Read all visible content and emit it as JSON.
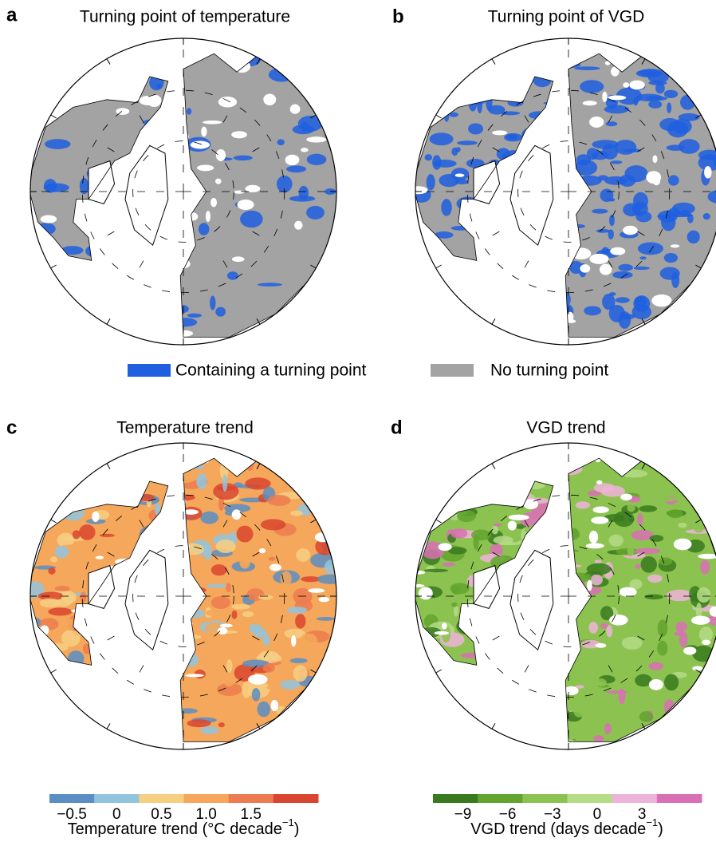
{
  "panels": [
    {
      "letter": "a",
      "title": "Turning point of temperature"
    },
    {
      "letter": "b",
      "title": "Turning point of VGD"
    },
    {
      "letter": "c",
      "title": "Temperature trend"
    },
    {
      "letter": "d",
      "title": "VGD trend"
    }
  ],
  "legend": [
    {
      "label": "Containing a turning point",
      "color": "#1f5fe0"
    },
    {
      "label": "No turning point",
      "color": "#a3a3a3"
    }
  ],
  "colorbars": [
    {
      "lim": [
        -0.75,
        2.25
      ],
      "colors": [
        "#5a8ec4",
        "#93c4de",
        "#f6cf82",
        "#f5a75b",
        "#ec7b4f",
        "#d9452e"
      ],
      "ticks": [
        {
          "value": -0.5,
          "label": "−0.5"
        },
        0,
        0.5,
        {
          "value": 1,
          "label": "1.0"
        },
        1.5
      ],
      "label": "Temperature trend (°C decade",
      "label_superscript": "−1",
      "label_end": ")"
    },
    {
      "lim": [
        -11,
        7
      ],
      "colors": [
        "#3a7a1e",
        "#63a42e",
        "#8cc350",
        "#b5dc86",
        "#eeb3d8",
        "#d970b5"
      ],
      "ticks": [
        {
          "value": -9,
          "label": "−9"
        },
        {
          "value": -6,
          "label": "−6"
        },
        {
          "value": -3,
          "label": "−3"
        },
        0,
        3
      ],
      "label": "VGD trend (days decade",
      "label_superscript": "−1",
      "label_end": ")"
    }
  ]
}
